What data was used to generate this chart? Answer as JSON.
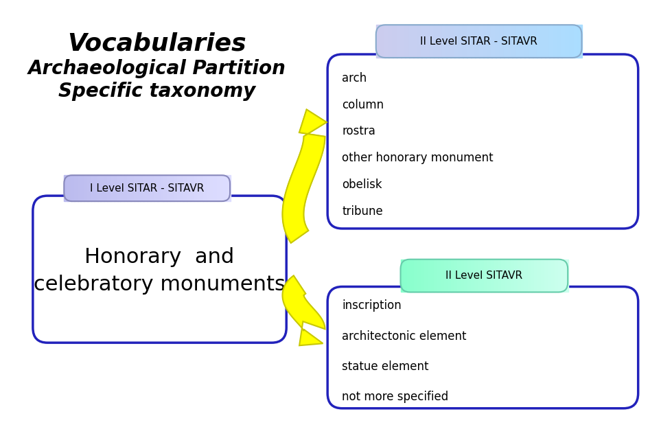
{
  "title_line1": "Vocabularies",
  "title_line2": "Archaeological Partition",
  "title_line3": "Specific taxonomy",
  "label_level1": "I Level SITAR - SITAVR",
  "main_box_text_line1": "Honorary  and",
  "main_box_text_line2": "celebratory monuments",
  "label_level2_top": "II Level SITAR - SITAVR",
  "top_box_items": [
    "arch",
    "column",
    "rostra",
    "other honorary monument",
    "obelisk",
    "tribune"
  ],
  "label_level2_bot": "II Level SITAVR",
  "bot_box_items": [
    "inscription",
    "architectonic element",
    "statue element",
    "not more specified"
  ],
  "main_box_border": "#2222bb",
  "top_box_border": "#2222bb",
  "bot_box_border": "#2222bb",
  "label1_color_left": "#aaaaee",
  "label1_color_right": "#ccccff",
  "label2_top_color_left": "#aaaaee",
  "label2_top_color_right": "#ccddff",
  "label2_bot_color": "#aaffdd",
  "arrow_fill": "#ffff00",
  "arrow_edge": "#c8c800",
  "bg_color": "#ffffff"
}
